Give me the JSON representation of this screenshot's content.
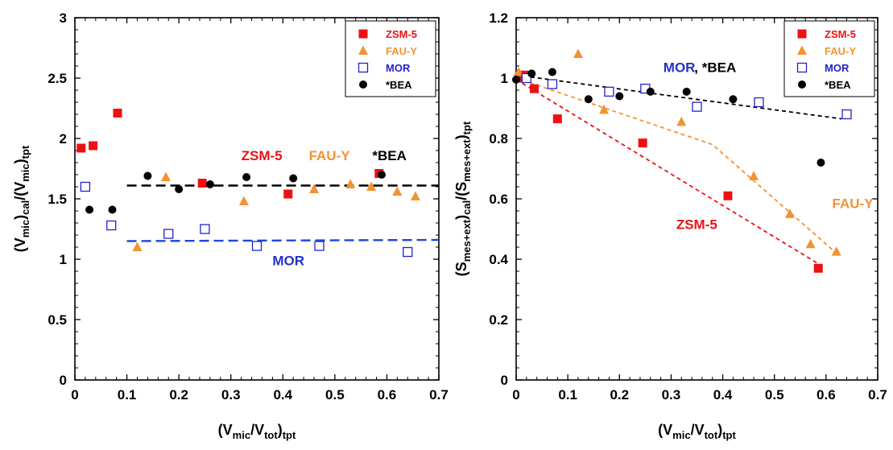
{
  "chart_data": [
    {
      "type": "scatter",
      "xlim": [
        0,
        0.7
      ],
      "ylim": [
        0,
        3
      ],
      "xticks": [
        "0",
        "0.1",
        "0.2",
        "0.3",
        "0.4",
        "0.5",
        "0.6",
        "0.7"
      ],
      "yticks": [
        "0",
        "0.5",
        "1",
        "1.5",
        "2",
        "2.5",
        "3"
      ],
      "xlabel": {
        "open": "(V",
        "s1": "mic",
        "mid": "/V",
        "s2": "tot",
        "close": ")",
        "s3": "tpt"
      },
      "ylabel": {
        "open": "(V",
        "s1": "mic",
        "mid": ")",
        "s2": "cal",
        "mid2": "/(V",
        "s3": "mic",
        "close": ")",
        "s4": "tpt"
      },
      "legend_position": "top-right",
      "grid": false,
      "series": [
        {
          "name": "ZSM-5",
          "marker": "square-filled",
          "color": "#ee1111",
          "x": [
            0.012,
            0.035,
            0.082,
            0.245,
            0.41,
            0.585
          ],
          "y": [
            1.92,
            1.94,
            2.21,
            1.63,
            1.54,
            1.71
          ]
        },
        {
          "name": "FAU-Y",
          "marker": "triangle",
          "color": "#f39231",
          "x": [
            0.12,
            0.175,
            0.325,
            0.46,
            0.53,
            0.57,
            0.62,
            0.655
          ],
          "y": [
            1.1,
            1.68,
            1.48,
            1.58,
            1.62,
            1.6,
            1.56,
            1.52
          ]
        },
        {
          "name": "MOR",
          "marker": "square-open",
          "color": "#2222cc",
          "x": [
            0.02,
            0.07,
            0.18,
            0.25,
            0.35,
            0.47,
            0.64
          ],
          "y": [
            1.6,
            1.28,
            1.21,
            1.25,
            1.11,
            1.11,
            1.06
          ]
        },
        {
          "name": "*BEA",
          "marker": "circle",
          "color": "#000000",
          "x": [
            0.028,
            0.072,
            0.14,
            0.2,
            0.26,
            0.33,
            0.42,
            0.59
          ],
          "y": [
            1.41,
            1.41,
            1.69,
            1.58,
            1.62,
            1.68,
            1.67,
            1.7
          ]
        }
      ],
      "trend_lines": [
        {
          "color": "#000000",
          "x": [
            0.1,
            0.7
          ],
          "y": [
            1.61,
            1.61
          ]
        },
        {
          "color": "#2244dd",
          "x": [
            0.1,
            0.7
          ],
          "y": [
            1.15,
            1.16
          ]
        }
      ],
      "annotations": [
        {
          "text": "ZSM-5",
          "color": "#ee1111",
          "x": 0.32,
          "y": 1.82
        },
        {
          "text": "FAU-Y",
          "color": "#f39231",
          "x": 0.45,
          "y": 1.82
        },
        {
          "text": "*BEA",
          "color": "#000000",
          "x": 0.572,
          "y": 1.82
        },
        {
          "text": "MOR",
          "color": "#2233cc",
          "x": 0.38,
          "y": 0.95
        }
      ]
    },
    {
      "type": "scatter",
      "xlim": [
        0,
        0.7
      ],
      "ylim": [
        0,
        1.2
      ],
      "xticks": [
        "0",
        "0.1",
        "0.2",
        "0.3",
        "0.4",
        "0.5",
        "0.6",
        "0.7"
      ],
      "yticks": [
        "0",
        "0.2",
        "0.4",
        "0.6",
        "0.8",
        "1",
        "1.2"
      ],
      "xlabel": {
        "open": "(V",
        "s1": "mic",
        "mid": "/V",
        "s2": "tot",
        "close": ")",
        "s3": "tpt"
      },
      "ylabel": {
        "open": "(S",
        "s1": "mes+ext",
        "mid": ")",
        "s2": "cal",
        "mid2": "/(S",
        "s3": "mes+ext",
        "close": ")",
        "s4": "tpt"
      },
      "legend_position": "top-right",
      "grid": false,
      "series": [
        {
          "name": "ZSM-5",
          "marker": "square-filled",
          "color": "#ee1111",
          "x": [
            0.005,
            0.015,
            0.035,
            0.08,
            0.245,
            0.41,
            0.585
          ],
          "y": [
            1.0,
            1.01,
            0.965,
            0.865,
            0.785,
            0.61,
            0.37
          ]
        },
        {
          "name": "FAU-Y",
          "marker": "triangle",
          "color": "#f39231",
          "x": [
            0.005,
            0.12,
            0.17,
            0.32,
            0.46,
            0.53,
            0.57,
            0.62
          ],
          "y": [
            1.02,
            1.08,
            0.895,
            0.855,
            0.675,
            0.55,
            0.45,
            0.425
          ]
        },
        {
          "name": "MOR",
          "marker": "square-open",
          "color": "#2222cc",
          "x": [
            0.02,
            0.07,
            0.18,
            0.25,
            0.35,
            0.47,
            0.64
          ],
          "y": [
            1.0,
            0.98,
            0.955,
            0.965,
            0.905,
            0.92,
            0.88
          ]
        },
        {
          "name": "*BEA",
          "marker": "circle",
          "color": "#000000",
          "x": [
            0.0,
            0.03,
            0.07,
            0.14,
            0.2,
            0.26,
            0.33,
            0.42,
            0.59
          ],
          "y": [
            0.995,
            1.015,
            1.02,
            0.93,
            0.94,
            0.955,
            0.955,
            0.93,
            0.72
          ]
        }
      ],
      "trend_lines": [
        {
          "color": "#000000",
          "x": [
            0.0,
            0.63
          ],
          "y": [
            1.01,
            0.865
          ]
        },
        {
          "color": "#f39231",
          "x": [
            0.0,
            0.38,
            0.62
          ],
          "y": [
            1.0,
            0.78,
            0.42
          ]
        },
        {
          "color": "#ee1111",
          "x": [
            0.0,
            0.585
          ],
          "y": [
            0.995,
            0.385
          ]
        }
      ],
      "annotations": [
        {
          "text": "MOR",
          "color": "#2233cc",
          "x": 0.285,
          "y": 1.02
        },
        {
          "text": ", *BEA",
          "color": "#000000",
          "x": 0.345,
          "y": 1.02
        },
        {
          "text": "FAU-Y",
          "color": "#f39231",
          "x": 0.612,
          "y": 0.57
        },
        {
          "text": "ZSM-5",
          "color": "#ee1111",
          "x": 0.31,
          "y": 0.5
        }
      ]
    }
  ]
}
